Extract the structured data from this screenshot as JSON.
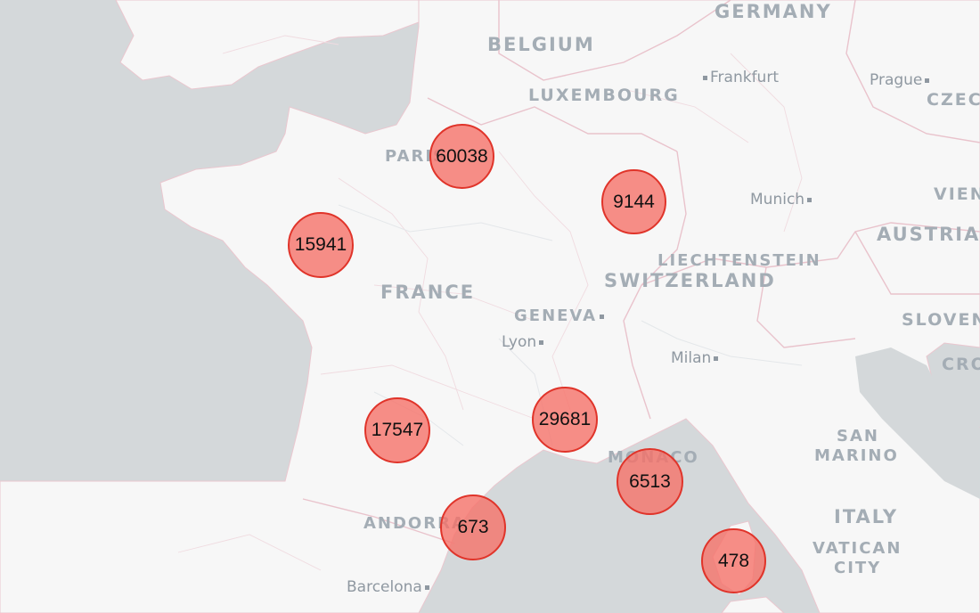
{
  "map": {
    "colors": {
      "sea": "#d4d8da",
      "land": "#f7f7f7",
      "borders": "#eac7cf",
      "cluster_fill": "#f67066",
      "cluster_stroke": "#e0342a"
    },
    "countries": {
      "germany": "GERMANY",
      "belgium": "BELGIUM",
      "luxembourg": "LUXEMBOURG",
      "france": "FRANCE",
      "switzerland": "SWITZERLAND",
      "liechtenstein": "LIECHTENSTEIN",
      "austria": "AUSTRIA",
      "vienna_partial": "VIEN",
      "czech_partial": "CZEC",
      "slovenia_partial": "SLOVEN",
      "croatia_partial": "CRO",
      "italy": "ITALY",
      "monaco": "MONACO",
      "andorra": "ANDORRA",
      "san": "SAN",
      "marino": "MARINO",
      "vatican": "VATICAN",
      "city": "CITY"
    },
    "cities": {
      "paris": "PARIS",
      "frankfurt": "Frankfurt",
      "prague": "Prague",
      "munich": "Munich",
      "geneva": "GENEVA",
      "lyon": "Lyon",
      "milan": "Milan",
      "barcelona": "Barcelona"
    },
    "clusters": [
      {
        "id": "paris",
        "count": "60038"
      },
      {
        "id": "strasbourg",
        "count": "9144"
      },
      {
        "id": "nantes",
        "count": "15941"
      },
      {
        "id": "bordeaux",
        "count": "17547"
      },
      {
        "id": "lyon-south",
        "count": "29681"
      },
      {
        "id": "nice",
        "count": "6513"
      },
      {
        "id": "perpignan",
        "count": "673"
      },
      {
        "id": "corsica",
        "count": "478"
      }
    ]
  }
}
